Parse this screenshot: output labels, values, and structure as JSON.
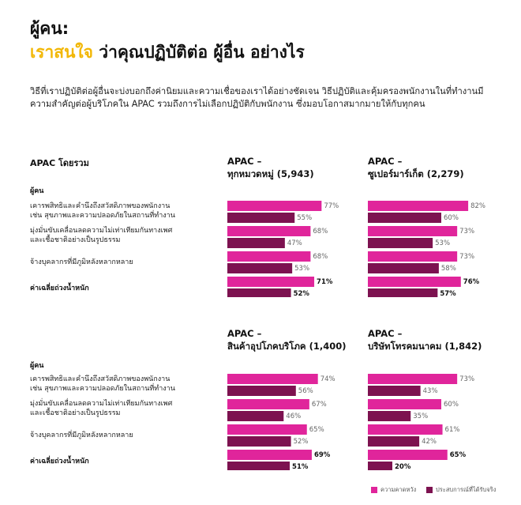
{
  "header": {
    "title_line1": "ผู้คน:",
    "title_line2_highlight": "เราสนใจ",
    "title_line2_rest": " ว่าคุณปฏิบัติต่อ ผู้อื่น อย่างไร",
    "intro": "วิธีที่เราปฏิบัติต่อผู้อื่นจะบ่งบอกถึงค่านิยมและความเชื่อของเราได้อย่างชัดเจน วิธีปฏิบัติและคุ้มครองพนักงานในที่ทำงานมีความสำคัญต่อผู้บริโภคใน APAC รวมถึงการไม่เลือกปฏิบัติกับพนักงาน ซึ่งมอบโอกาสมากมายให้กับทุกคน"
  },
  "left_labels": {
    "section_title": "APAC โดยรวม",
    "group_title": "ผู้คน",
    "row1_line1": "เคารพสิทธิและคำนึงถึงสวัสดิภาพของพนักงาน",
    "row1_line2": "เช่น สุขภาพและความปลอดภัยในสถานที่ทำงาน",
    "row2_line1": "มุ่งมั่นขับเคลื่อนลดความไม่เท่าเทียมกันทางเพศ",
    "row2_line2": "และเชื้อชาติอย่างเป็นรูปธรรม",
    "row3": "จ้างบุคลากรที่มีภูมิหลังหลากหลาย",
    "avg": "ค่าเฉลี่ยถ่วงน้ำหนัก"
  },
  "legend": {
    "expectation": "ความคาดหวัง",
    "experience": "ประสบการณ์ที่ได้รับจริง"
  },
  "colors": {
    "expectation": "#e0259b",
    "experience": "#7d1250",
    "highlight": "#f2b705"
  },
  "chart_data": [
    {
      "type": "bar",
      "title_line1": "APAC –",
      "title_line2": "ทุกหมวดหมู่ (5,943)",
      "categories": [
        "row1",
        "row2",
        "row3",
        "avg"
      ],
      "series": [
        {
          "name": "ความคาดหวัง",
          "values": [
            77,
            68,
            68,
            71
          ]
        },
        {
          "name": "ประสบการณ์ที่ได้รับจริง",
          "values": [
            55,
            47,
            53,
            52
          ]
        }
      ],
      "value_labels": [
        [
          "77%",
          "68%",
          "68%",
          "71%"
        ],
        [
          "55%",
          "47%",
          "53%",
          "52%"
        ]
      ]
    },
    {
      "type": "bar",
      "title_line1": "APAC –",
      "title_line2": "ซูเปอร์มาร์เก็ต (2,279)",
      "categories": [
        "row1",
        "row2",
        "row3",
        "avg"
      ],
      "series": [
        {
          "name": "ความคาดหวัง",
          "values": [
            82,
            73,
            73,
            76
          ]
        },
        {
          "name": "ประสบการณ์ที่ได้รับจริง",
          "values": [
            60,
            53,
            58,
            57
          ]
        }
      ],
      "value_labels": [
        [
          "82%",
          "73%",
          "73%",
          "76%"
        ],
        [
          "60%",
          "53%",
          "58%",
          "57%"
        ]
      ]
    },
    {
      "type": "bar",
      "title_line1": "APAC –",
      "title_line2": "สินค้าอุปโภคบริโภค (1,400)",
      "categories": [
        "row1",
        "row2",
        "row3",
        "avg"
      ],
      "series": [
        {
          "name": "ความคาดหวัง",
          "values": [
            74,
            67,
            65,
            69
          ]
        },
        {
          "name": "ประสบการณ์ที่ได้รับจริง",
          "values": [
            56,
            46,
            52,
            51
          ]
        }
      ],
      "value_labels": [
        [
          "74%",
          "67%",
          "65%",
          "69%"
        ],
        [
          "56%",
          "46%",
          "52%",
          "51%"
        ]
      ]
    },
    {
      "type": "bar",
      "title_line1": "APAC –",
      "title_line2": "บริษัทโทรคมนาคม (1,842)",
      "categories": [
        "row1",
        "row2",
        "row3",
        "avg"
      ],
      "series": [
        {
          "name": "ความคาดหวัง",
          "values": [
            73,
            60,
            61,
            65
          ]
        },
        {
          "name": "ประสบการณ์ที่ได้รับจริง",
          "values": [
            43,
            35,
            42,
            20
          ]
        }
      ],
      "value_labels": [
        [
          "73%",
          "60%",
          "61%",
          "65%"
        ],
        [
          "43%",
          "35%",
          "42%",
          "20%"
        ]
      ]
    }
  ]
}
